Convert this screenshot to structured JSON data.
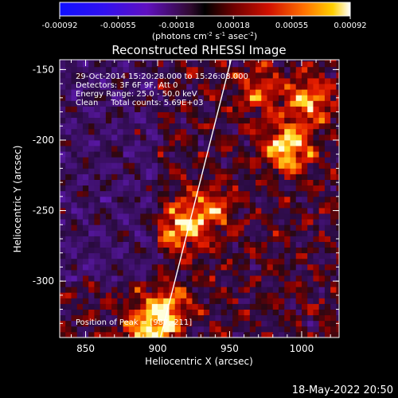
{
  "chart_data": {
    "type": "heatmap",
    "title": "Reconstructed RHESSI Image",
    "xlabel": "Heliocentric X (arcsec)",
    "ylabel": "Heliocentric Y (arcsec)",
    "xlim": [
      832,
      1026
    ],
    "ylim": [
      -340,
      -143
    ],
    "x_ticks": [
      "850",
      "900",
      "950",
      "1000"
    ],
    "y_ticks": [
      "-150",
      "-200",
      "-250",
      "-300"
    ],
    "colorbar": {
      "ticks": [
        "-0.00092",
        "-0.00055",
        "-0.00018",
        "0.00018",
        "0.00055",
        "0.00092"
      ],
      "range": [
        -0.00092,
        0.00092
      ],
      "unit_label": "(photons cm-2 s-1 asec-2)",
      "unit_parts": [
        "(photons cm",
        "-2",
        " s",
        "-1",
        " asec",
        "-2",
        ")"
      ]
    },
    "info": [
      "29-Oct-2014 15:20:28.000 to 15:26:08.000",
      "Detectors: 3F 6F 9F, Att 0",
      "Energy Range: 25.0 - 50.0 keV",
      "Clean     Total counts: 5.69E+03"
    ],
    "peak_label": "Position of Peak = [987,-211]",
    "limb_line": [
      [
        902,
        -340
      ],
      [
        951,
        -143
      ]
    ],
    "peak": [
      987,
      -211
    ],
    "bright_regions": [
      {
        "x": 990,
        "y": -205,
        "intensity": 1.0
      },
      {
        "x": 1005,
        "y": -172,
        "intensity": 0.75
      },
      {
        "x": 917,
        "y": -262,
        "intensity": 0.85
      },
      {
        "x": 905,
        "y": -320,
        "intensity": 0.8
      },
      {
        "x": 893,
        "y": -336,
        "intensity": 0.8
      },
      {
        "x": 938,
        "y": -248,
        "intensity": 0.6
      },
      {
        "x": 970,
        "y": -165,
        "intensity": 0.5
      }
    ]
  },
  "footer": {
    "timestamp": "18-May-2022 20:50"
  }
}
